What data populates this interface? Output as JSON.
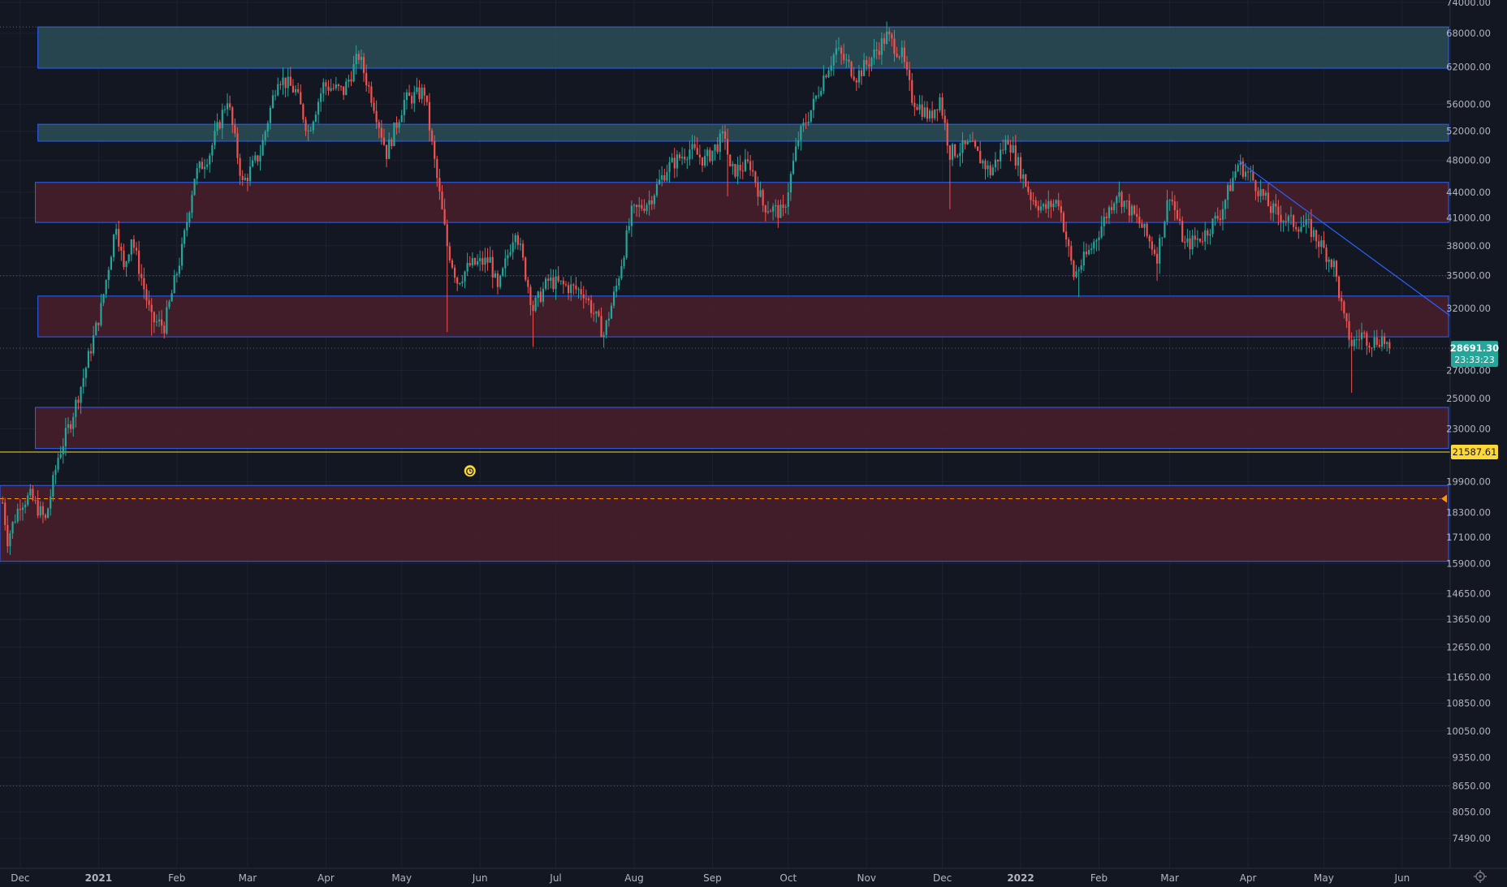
{
  "colors": {
    "background": "#131722",
    "grid": "#1e2230",
    "up": "#26a69a",
    "down": "#ef5350",
    "zone_resistance_fill": "#2c4d57",
    "zone_support_fill": "#4a1e2a",
    "zone_border": "#2962ff",
    "axis_text": "#b2b5be",
    "price_badge": "#26a69a",
    "level_badge": "#fdd835",
    "alert_line": "#ff9800"
  },
  "chart_data": {
    "type": "candlestick",
    "y_scale": "log",
    "ylim": [
      6900,
      74500
    ],
    "y_ticks": [
      "74000.00",
      "68000.00",
      "62000.00",
      "56000.00",
      "52000.00",
      "48000.00",
      "44000.00",
      "41000.00",
      "38000.00",
      "35000.00",
      "32000.00",
      "27000.00",
      "25000.00",
      "23000.00",
      "19900.00",
      "18300.00",
      "17100.00",
      "15900.00",
      "14650.00",
      "13650.00",
      "12650.00",
      "11650.00",
      "10850.00",
      "10050.00",
      "9350.00",
      "8650.00",
      "8050.00",
      "7490.00"
    ],
    "x_range": [
      "2020-11-23",
      "2022-06-20"
    ],
    "x_ticks": [
      {
        "label": "Dec",
        "date": "2020-12-01"
      },
      {
        "label": "2021",
        "date": "2021-01-01"
      },
      {
        "label": "Feb",
        "date": "2021-02-01"
      },
      {
        "label": "Mar",
        "date": "2021-03-01"
      },
      {
        "label": "Apr",
        "date": "2021-04-01"
      },
      {
        "label": "May",
        "date": "2021-05-01"
      },
      {
        "label": "Jun",
        "date": "2021-06-01"
      },
      {
        "label": "Jul",
        "date": "2021-07-01"
      },
      {
        "label": "Aug",
        "date": "2021-08-01"
      },
      {
        "label": "Sep",
        "date": "2021-09-01"
      },
      {
        "label": "Oct",
        "date": "2021-10-01"
      },
      {
        "label": "Nov",
        "date": "2021-11-01"
      },
      {
        "label": "Dec",
        "date": "2021-12-01"
      },
      {
        "label": "2022",
        "date": "2022-01-01"
      },
      {
        "label": "Feb",
        "date": "2022-02-01"
      },
      {
        "label": "Mar",
        "date": "2022-03-01"
      },
      {
        "label": "Apr",
        "date": "2022-04-01"
      },
      {
        "label": "May",
        "date": "2022-05-01"
      },
      {
        "label": "Jun",
        "date": "2022-06-01"
      }
    ],
    "price_path": [
      {
        "date": "2020-11-24",
        "price": 18800
      },
      {
        "date": "2020-11-26",
        "price": 17000
      },
      {
        "date": "2020-12-01",
        "price": 18800
      },
      {
        "date": "2020-12-05",
        "price": 19100
      },
      {
        "date": "2020-12-11",
        "price": 17900
      },
      {
        "date": "2020-12-16",
        "price": 21300
      },
      {
        "date": "2020-12-21",
        "price": 23500
      },
      {
        "date": "2020-12-26",
        "price": 26500
      },
      {
        "date": "2021-01-02",
        "price": 32000
      },
      {
        "date": "2021-01-08",
        "price": 40500
      },
      {
        "date": "2021-01-11",
        "price": 35500
      },
      {
        "date": "2021-01-14",
        "price": 39000
      },
      {
        "date": "2021-01-22",
        "price": 31000
      },
      {
        "date": "2021-01-27",
        "price": 30500
      },
      {
        "date": "2021-02-03",
        "price": 37500
      },
      {
        "date": "2021-02-08",
        "price": 46000
      },
      {
        "date": "2021-02-14",
        "price": 49000
      },
      {
        "date": "2021-02-21",
        "price": 57000
      },
      {
        "date": "2021-02-27",
        "price": 45000
      },
      {
        "date": "2021-03-06",
        "price": 49000
      },
      {
        "date": "2021-03-13",
        "price": 60500
      },
      {
        "date": "2021-03-20",
        "price": 58000
      },
      {
        "date": "2021-03-25",
        "price": 52000
      },
      {
        "date": "2021-03-31",
        "price": 59000
      },
      {
        "date": "2021-04-08",
        "price": 58000
      },
      {
        "date": "2021-04-14",
        "price": 64000
      },
      {
        "date": "2021-04-20",
        "price": 56000
      },
      {
        "date": "2021-04-25",
        "price": 49000
      },
      {
        "date": "2021-05-02",
        "price": 56500
      },
      {
        "date": "2021-05-10",
        "price": 58000
      },
      {
        "date": "2021-05-13",
        "price": 50000
      },
      {
        "date": "2021-05-19",
        "price": 38000
      },
      {
        "date": "2021-05-23",
        "price": 34500
      },
      {
        "date": "2021-05-28",
        "price": 36000
      },
      {
        "date": "2021-06-05",
        "price": 36500
      },
      {
        "date": "2021-06-08",
        "price": 33500
      },
      {
        "date": "2021-06-15",
        "price": 40000
      },
      {
        "date": "2021-06-22",
        "price": 32000
      },
      {
        "date": "2021-06-28",
        "price": 34500
      },
      {
        "date": "2021-07-05",
        "price": 34000
      },
      {
        "date": "2021-07-12",
        "price": 33500
      },
      {
        "date": "2021-07-20",
        "price": 29800
      },
      {
        "date": "2021-07-25",
        "price": 34000
      },
      {
        "date": "2021-07-31",
        "price": 41500
      },
      {
        "date": "2021-08-07",
        "price": 43000
      },
      {
        "date": "2021-08-14",
        "price": 47000
      },
      {
        "date": "2021-08-23",
        "price": 49500
      },
      {
        "date": "2021-08-29",
        "price": 48000
      },
      {
        "date": "2021-09-06",
        "price": 51500
      },
      {
        "date": "2021-09-08",
        "price": 46500
      },
      {
        "date": "2021-09-16",
        "price": 47500
      },
      {
        "date": "2021-09-21",
        "price": 42500
      },
      {
        "date": "2021-09-29",
        "price": 41500
      },
      {
        "date": "2021-10-05",
        "price": 51000
      },
      {
        "date": "2021-10-11",
        "price": 56000
      },
      {
        "date": "2021-10-15",
        "price": 60500
      },
      {
        "date": "2021-10-20",
        "price": 65000
      },
      {
        "date": "2021-10-28",
        "price": 60500
      },
      {
        "date": "2021-11-02",
        "price": 63000
      },
      {
        "date": "2021-11-09",
        "price": 67500
      },
      {
        "date": "2021-11-15",
        "price": 64000
      },
      {
        "date": "2021-11-19",
        "price": 57000
      },
      {
        "date": "2021-11-26",
        "price": 54000
      },
      {
        "date": "2021-11-30",
        "price": 57000
      },
      {
        "date": "2021-12-04",
        "price": 49000
      },
      {
        "date": "2021-12-12",
        "price": 50000
      },
      {
        "date": "2021-12-20",
        "price": 46500
      },
      {
        "date": "2021-12-27",
        "price": 51000
      },
      {
        "date": "2022-01-05",
        "price": 43500
      },
      {
        "date": "2022-01-10",
        "price": 42000
      },
      {
        "date": "2022-01-16",
        "price": 43000
      },
      {
        "date": "2022-01-22",
        "price": 35000
      },
      {
        "date": "2022-01-29",
        "price": 37800
      },
      {
        "date": "2022-02-08",
        "price": 44000
      },
      {
        "date": "2022-02-13",
        "price": 42000
      },
      {
        "date": "2022-02-18",
        "price": 40000
      },
      {
        "date": "2022-02-24",
        "price": 37000
      },
      {
        "date": "2022-03-01",
        "price": 44000
      },
      {
        "date": "2022-03-07",
        "price": 38000
      },
      {
        "date": "2022-03-14",
        "price": 39000
      },
      {
        "date": "2022-03-21",
        "price": 41500
      },
      {
        "date": "2022-03-28",
        "price": 47500
      },
      {
        "date": "2022-04-02",
        "price": 46000
      },
      {
        "date": "2022-04-10",
        "price": 42000
      },
      {
        "date": "2022-04-18",
        "price": 40500
      },
      {
        "date": "2022-04-25",
        "price": 40000
      },
      {
        "date": "2022-04-30",
        "price": 38000
      },
      {
        "date": "2022-05-05",
        "price": 36000
      },
      {
        "date": "2022-05-09",
        "price": 31000
      },
      {
        "date": "2022-05-12",
        "price": 29000
      },
      {
        "date": "2022-05-16",
        "price": 29800
      },
      {
        "date": "2022-05-20",
        "price": 29200
      },
      {
        "date": "2022-05-24",
        "price": 29500
      },
      {
        "date": "2022-05-27",
        "price": 28691.3
      }
    ],
    "zones": [
      {
        "kind": "resistance",
        "from": 61800,
        "to": 69200,
        "start": "2020-12-08",
        "end": "2022-06-20"
      },
      {
        "kind": "resistance",
        "from": 50600,
        "to": 53000,
        "start": "2020-12-08",
        "end": "2022-06-20"
      },
      {
        "kind": "support",
        "from": 40500,
        "to": 45200,
        "start": "2020-12-07",
        "end": "2022-06-20"
      },
      {
        "kind": "support",
        "from": 29600,
        "to": 33100,
        "start": "2020-12-08",
        "end": "2022-06-20"
      },
      {
        "kind": "support",
        "from": 21800,
        "to": 24400,
        "start": "2020-12-07",
        "end": "2022-06-20"
      },
      {
        "kind": "support",
        "from": 16000,
        "to": 19700,
        "start": "2020-11-22",
        "end": "2022-06-21"
      }
    ],
    "trendline": {
      "from": {
        "date": "2022-03-28",
        "price": 48000
      },
      "to": {
        "date": "2022-06-21",
        "price": 31200
      }
    },
    "dotted_levels": [
      69200,
      35000,
      28691.3,
      8650
    ],
    "horizontal_line": 21587.61,
    "alert_level": 19000,
    "alarm_date": "2021-05-28",
    "last_price": "28691.30",
    "countdown": "23:33:23",
    "level_label": "21587.61"
  }
}
